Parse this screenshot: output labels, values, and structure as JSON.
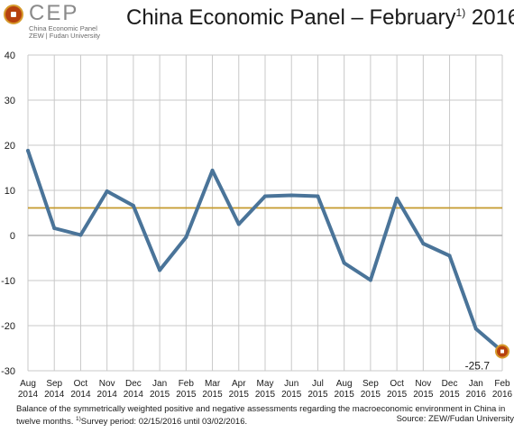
{
  "header": {
    "logo_text": "CEP",
    "logo_subtitle_1": "China Economic Panel",
    "logo_subtitle_2": "ZEW | Fudan University",
    "title_main": "China Economic Panel – February",
    "title_sup": "1)",
    "title_year": "2016"
  },
  "chart_data": {
    "type": "line",
    "categories": [
      [
        "Aug",
        "2014"
      ],
      [
        "Sep",
        "2014"
      ],
      [
        "Oct",
        "2014"
      ],
      [
        "Nov",
        "2014"
      ],
      [
        "Dec",
        "2014"
      ],
      [
        "Jan",
        "2015"
      ],
      [
        "Feb",
        "2015"
      ],
      [
        "Mar",
        "2015"
      ],
      [
        "Apr",
        "2015"
      ],
      [
        "May",
        "2015"
      ],
      [
        "Jun",
        "2015"
      ],
      [
        "Jul",
        "2015"
      ],
      [
        "Aug",
        "2015"
      ],
      [
        "Sep",
        "2015"
      ],
      [
        "Oct",
        "2015"
      ],
      [
        "Nov",
        "2015"
      ],
      [
        "Dec",
        "2015"
      ],
      [
        "Jan",
        "2016"
      ],
      [
        "Feb",
        "2016"
      ]
    ],
    "values": [
      18.8,
      1.6,
      0.1,
      9.8,
      6.6,
      -7.7,
      -0.4,
      14.4,
      2.5,
      8.7,
      8.9,
      8.7,
      -6.1,
      -9.9,
      8.2,
      -1.8,
      -4.5,
      -20.7,
      -25.7
    ],
    "average_line": 6.1,
    "ylim": [
      -30,
      40
    ],
    "yticks": [
      40,
      30,
      20,
      10,
      0,
      -10,
      -20,
      -30
    ],
    "last_value_label": "-25.7",
    "colors": {
      "line": "#4a7499",
      "average": "#c49a2c",
      "zero": "#b0b0b0",
      "grid": "#c8c8c8",
      "marker": "#b7410e",
      "marker_ring": "#d69a2c"
    },
    "grid": true
  },
  "footer": {
    "line1": "Balance of the symmetrically weighted positive and negative assessments regarding the macroeconomic environment  in China in",
    "line2_a": "twelve months.",
    "line2_sup": "1)",
    "line2_b": "Survey period: 02/15/2016 until 03/02/2016.",
    "source": "Source: ZEW/Fudan University"
  }
}
